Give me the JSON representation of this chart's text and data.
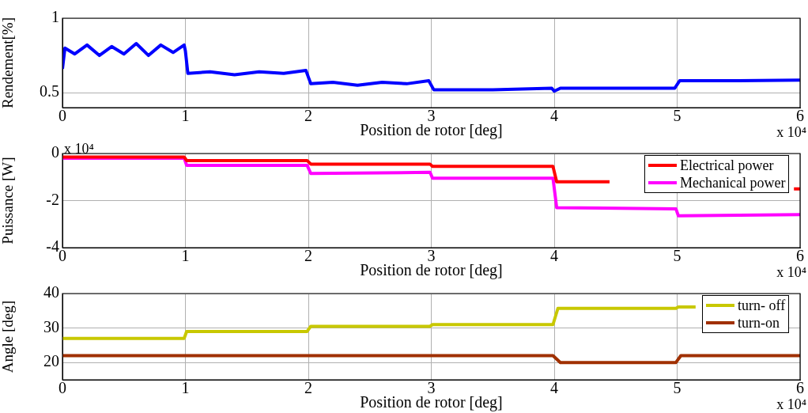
{
  "chart_data": [
    {
      "type": "line",
      "xlabel": "Position de rotor [deg]",
      "ylabel": "Rendement[%]",
      "xlim": [
        0,
        6
      ],
      "xticks": [
        0,
        1,
        2,
        3,
        4,
        5,
        6
      ],
      "ylim": [
        0.4,
        1
      ],
      "yticks": [
        0.5,
        1
      ],
      "grid": true,
      "annotations": [
        "x 10⁴"
      ],
      "series": [
        {
          "color": "#0000ff",
          "x": [
            0,
            0.02,
            0.1,
            0.2,
            0.3,
            0.4,
            0.5,
            0.6,
            0.7,
            0.8,
            0.9,
            0.99,
            1.0,
            1.02,
            1.2,
            1.4,
            1.6,
            1.8,
            1.98,
            2.02,
            2.2,
            2.4,
            2.6,
            2.8,
            2.98,
            3.02,
            3.5,
            3.98,
            4.0,
            4.05,
            4.5,
            4.98,
            5.02,
            5.5,
            6.0
          ],
          "values": [
            0.66,
            0.8,
            0.76,
            0.82,
            0.75,
            0.81,
            0.76,
            0.83,
            0.75,
            0.82,
            0.77,
            0.82,
            0.78,
            0.63,
            0.64,
            0.62,
            0.64,
            0.63,
            0.65,
            0.56,
            0.57,
            0.55,
            0.57,
            0.56,
            0.58,
            0.52,
            0.52,
            0.53,
            0.51,
            0.53,
            0.53,
            0.53,
            0.58,
            0.58,
            0.585
          ]
        }
      ]
    },
    {
      "type": "line",
      "xlabel": "Position de rotor [deg]",
      "ylabel": "Puissance [W]",
      "xlim": [
        0,
        6
      ],
      "xticks": [
        0,
        1,
        2,
        3,
        4,
        5,
        6
      ],
      "ylim": [
        -4,
        0
      ],
      "yticks": [
        -4,
        -2,
        0
      ],
      "grid": true,
      "legend": "top right",
      "annotations": [
        "x 10⁴",
        "x 10⁴"
      ],
      "series": [
        {
          "name": "Electrical power",
          "color": "#ff0000",
          "x": [
            0,
            0.99,
            1.01,
            1.99,
            2.02,
            2.99,
            3.01,
            3.99,
            4.02,
            4.45,
            4.5,
            5.95,
            6.0
          ],
          "values": [
            -0.15,
            -0.15,
            -0.3,
            -0.3,
            -0.45,
            -0.45,
            -0.55,
            -0.55,
            -1.2,
            -1.2,
            null,
            -1.5,
            -1.5
          ]
        },
        {
          "name": "Mechanical power",
          "color": "#ff00ff",
          "x": [
            0,
            0.99,
            1.01,
            1.99,
            2.02,
            2.99,
            3.01,
            3.99,
            4.02,
            4.99,
            5.01,
            6.0
          ],
          "values": [
            -0.2,
            -0.2,
            -0.5,
            -0.5,
            -0.85,
            -0.8,
            -1.05,
            -1.05,
            -2.3,
            -2.35,
            -2.65,
            -2.6
          ]
        }
      ]
    },
    {
      "type": "line",
      "xlabel": "Position de rotor [deg]",
      "ylabel": "Angle [deg]",
      "xlim": [
        0,
        6
      ],
      "xticks": [
        0,
        1,
        2,
        3,
        4,
        5,
        6
      ],
      "ylim": [
        15,
        40
      ],
      "yticks": [
        20,
        30,
        40
      ],
      "grid": true,
      "legend": "top right",
      "annotations": [
        "x 10⁴"
      ],
      "series": [
        {
          "name": "turn- off",
          "color": "#c8c800",
          "x": [
            0,
            0.99,
            1.01,
            1.99,
            2.02,
            2.99,
            3.01,
            3.99,
            4.03,
            4.99,
            5.01,
            5.15
          ],
          "values": [
            27,
            27,
            29,
            29,
            30.5,
            30.5,
            31,
            31,
            35.7,
            35.7,
            36.1,
            36.1
          ]
        },
        {
          "name": "turn-on",
          "color": "#a03000",
          "x": [
            0,
            3.99,
            4.05,
            4.99,
            5.03,
            6.0
          ],
          "values": [
            22,
            22,
            20,
            20,
            22,
            22
          ]
        }
      ]
    }
  ]
}
